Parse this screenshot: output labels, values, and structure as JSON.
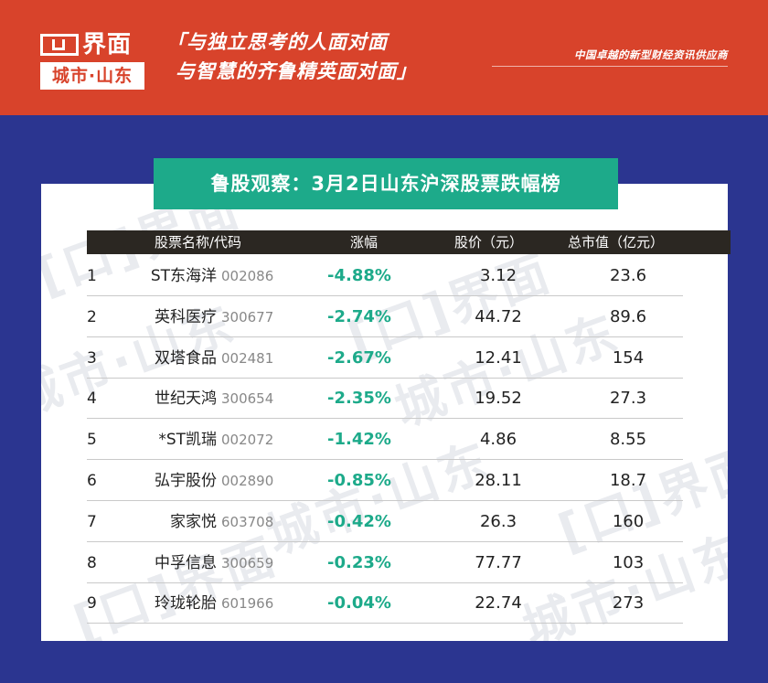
{
  "brand": {
    "name": "界面",
    "sub": "城市·山东"
  },
  "slogan": {
    "line1": "与独立思考的人面对面",
    "line2": "与智慧的齐鲁精英面对面"
  },
  "tagline": "中国卓越的新型财经资讯供应商",
  "title": "鲁股观察：3月2日山东沪深股票跌幅榜",
  "columns": {
    "name_code": "股票名称/代码",
    "change": "涨幅",
    "price": "股价（元）",
    "cap": "总市值（亿元）"
  },
  "rows": [
    {
      "rank": "1",
      "name": "ST东海洋",
      "code": "002086",
      "change": "-4.88%",
      "price": "3.12",
      "cap": "23.6"
    },
    {
      "rank": "2",
      "name": "英科医疗",
      "code": "300677",
      "change": "-2.74%",
      "price": "44.72",
      "cap": "89.6"
    },
    {
      "rank": "3",
      "name": "双塔食品",
      "code": "002481",
      "change": "-2.67%",
      "price": "12.41",
      "cap": "154"
    },
    {
      "rank": "4",
      "name": "世纪天鸿",
      "code": "300654",
      "change": "-2.35%",
      "price": "19.52",
      "cap": "27.3"
    },
    {
      "rank": "5",
      "name": "*ST凯瑞",
      "code": "002072",
      "change": "-1.42%",
      "price": "4.86",
      "cap": "8.55"
    },
    {
      "rank": "6",
      "name": "弘宇股份",
      "code": "002890",
      "change": "-0.85%",
      "price": "28.11",
      "cap": "18.7"
    },
    {
      "rank": "7",
      "name": "家家悦",
      "code": "603708",
      "change": "-0.42%",
      "price": "26.3",
      "cap": "160"
    },
    {
      "rank": "8",
      "name": "中孚信息",
      "code": "300659",
      "change": "-0.23%",
      "price": "77.77",
      "cap": "103"
    },
    {
      "rank": "9",
      "name": "玲珑轮胎",
      "code": "601966",
      "change": "-0.04%",
      "price": "22.74",
      "cap": "273"
    }
  ],
  "colors": {
    "top_bar": "#d8432b",
    "background": "#2b3590",
    "title_pill": "#1daa8a",
    "header_bar": "#2b2722",
    "negative_change": "#1daa8a"
  }
}
